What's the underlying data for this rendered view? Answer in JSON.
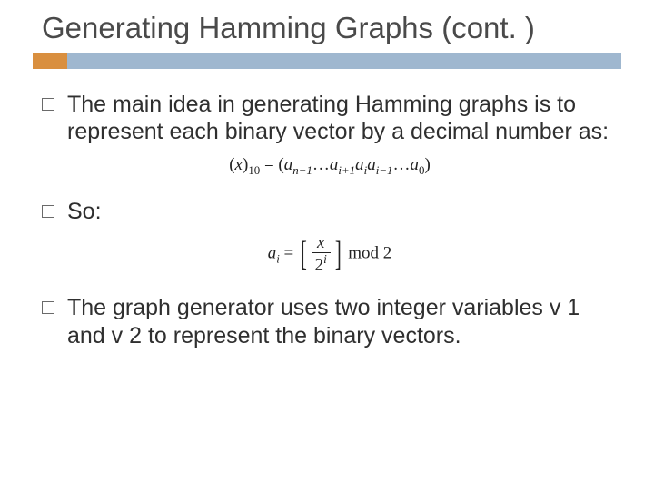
{
  "colors": {
    "accent_orange": "#d98f3f",
    "accent_blue": "#9fb7cf",
    "background": "#ffffff",
    "title_color": "#4a4a4a",
    "body_color": "#2f2f2f",
    "formula_color": "#222222",
    "bullet_border": "#6a6a6a"
  },
  "typography": {
    "title_fontsize": 33,
    "body_fontsize": 25,
    "formula_fontsize": 19,
    "title_font": "Arial",
    "formula_font": "Times New Roman"
  },
  "title": "Generating Hamming Graphs (cont. )",
  "bullets": {
    "b1": "The main idea in generating Hamming graphs is to represent each binary vector by a decimal number as:",
    "b2": "So:",
    "b3": "The graph generator uses two integer variables v 1 and v 2 to represent the binary vectors."
  },
  "formula1": {
    "lp": "(",
    "x": "x",
    "rp": ")",
    "ten": "10",
    "eq": " = (",
    "a": "a",
    "n1": "n−1",
    "dots": "…",
    "ip1": "i+1",
    "i": "i",
    "im1": "i−1",
    "zero": "0",
    "close": ")"
  },
  "formula2": {
    "a": "a",
    "i": "i",
    "eq": " = ",
    "lb": "[",
    "rb": "]",
    "num": "x",
    "den_base": "2",
    "den_sup": "i",
    "mod": "  mod  ",
    "two": "2"
  }
}
